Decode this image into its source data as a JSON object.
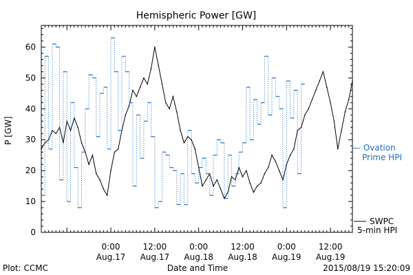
{
  "chart_data": {
    "type": "line",
    "title": "Hemispheric Power [GW]",
    "xlabel": "Date and Time",
    "ylabel": "P [GW]",
    "ylim": [
      0,
      67
    ],
    "yticks": [
      0,
      10,
      20,
      30,
      40,
      50,
      60
    ],
    "xlim": [
      "2015-08-16 05:00",
      "2015-08-19 18:00"
    ],
    "xticks": [
      {
        "t": "2015-08-17 00:00",
        "line1": "0:00",
        "line2": "Aug.17"
      },
      {
        "t": "2015-08-17 12:00",
        "line1": "12:00",
        "line2": "Aug.17"
      },
      {
        "t": "2015-08-18 00:00",
        "line1": "0:00",
        "line2": "Aug.18"
      },
      {
        "t": "2015-08-18 12:00",
        "line1": "12:00",
        "line2": "Aug.18"
      },
      {
        "t": "2015-08-19 00:00",
        "line1": "0:00",
        "line2": "Aug.19"
      },
      {
        "t": "2015-08-19 12:00",
        "line1": "12:00",
        "line2": "Aug.19"
      }
    ],
    "grid": false,
    "series": [
      {
        "name": "SWPC 5-min HPI",
        "label_lines": [
          "SWPC",
          "5-min HPI"
        ],
        "style": "solid",
        "color": "#000000",
        "points": [
          [
            "2015-08-16 05:00",
            27
          ],
          [
            "2015-08-16 06:00",
            29
          ],
          [
            "2015-08-16 07:00",
            30
          ],
          [
            "2015-08-16 08:00",
            33
          ],
          [
            "2015-08-16 09:00",
            32
          ],
          [
            "2015-08-16 10:00",
            34
          ],
          [
            "2015-08-16 11:00",
            29
          ],
          [
            "2015-08-16 12:00",
            36
          ],
          [
            "2015-08-16 13:00",
            33
          ],
          [
            "2015-08-16 14:00",
            37
          ],
          [
            "2015-08-16 15:00",
            34
          ],
          [
            "2015-08-16 16:00",
            29
          ],
          [
            "2015-08-16 17:00",
            26
          ],
          [
            "2015-08-16 18:00",
            22
          ],
          [
            "2015-08-16 19:00",
            25
          ],
          [
            "2015-08-16 20:00",
            19
          ],
          [
            "2015-08-16 21:00",
            17
          ],
          [
            "2015-08-16 22:00",
            14
          ],
          [
            "2015-08-16 23:00",
            12
          ],
          [
            "2015-08-17 00:00",
            20
          ],
          [
            "2015-08-17 01:00",
            26
          ],
          [
            "2015-08-17 02:00",
            27
          ],
          [
            "2015-08-17 03:00",
            33
          ],
          [
            "2015-08-17 04:00",
            38
          ],
          [
            "2015-08-17 05:00",
            41
          ],
          [
            "2015-08-17 06:00",
            46
          ],
          [
            "2015-08-17 07:00",
            44
          ],
          [
            "2015-08-17 08:00",
            47
          ],
          [
            "2015-08-17 09:00",
            50
          ],
          [
            "2015-08-17 10:00",
            48
          ],
          [
            "2015-08-17 11:00",
            53
          ],
          [
            "2015-08-17 12:00",
            60
          ],
          [
            "2015-08-17 13:00",
            54
          ],
          [
            "2015-08-17 14:00",
            48
          ],
          [
            "2015-08-17 15:00",
            42
          ],
          [
            "2015-08-17 16:00",
            40
          ],
          [
            "2015-08-17 17:00",
            44
          ],
          [
            "2015-08-17 18:00",
            39
          ],
          [
            "2015-08-17 19:00",
            33
          ],
          [
            "2015-08-17 20:00",
            29
          ],
          [
            "2015-08-17 21:00",
            31
          ],
          [
            "2015-08-17 22:00",
            30
          ],
          [
            "2015-08-17 23:00",
            27
          ],
          [
            "2015-08-18 00:00",
            21
          ],
          [
            "2015-08-18 01:00",
            15
          ],
          [
            "2015-08-18 02:00",
            17
          ],
          [
            "2015-08-18 03:00",
            19
          ],
          [
            "2015-08-18 04:00",
            15
          ],
          [
            "2015-08-18 05:00",
            17
          ],
          [
            "2015-08-18 06:00",
            14
          ],
          [
            "2015-08-18 07:00",
            11
          ],
          [
            "2015-08-18 08:00",
            13
          ],
          [
            "2015-08-18 09:00",
            18
          ],
          [
            "2015-08-18 10:00",
            17
          ],
          [
            "2015-08-18 11:00",
            21
          ],
          [
            "2015-08-18 12:00",
            18
          ],
          [
            "2015-08-18 13:00",
            20
          ],
          [
            "2015-08-18 14:00",
            16
          ],
          [
            "2015-08-18 15:00",
            13
          ],
          [
            "2015-08-18 16:00",
            15
          ],
          [
            "2015-08-18 17:00",
            16
          ],
          [
            "2015-08-18 18:00",
            19
          ],
          [
            "2015-08-18 19:00",
            21
          ],
          [
            "2015-08-18 20:00",
            25
          ],
          [
            "2015-08-18 21:00",
            23
          ],
          [
            "2015-08-18 22:00",
            20
          ],
          [
            "2015-08-18 23:00",
            17
          ],
          [
            "2015-08-19 00:00",
            22
          ],
          [
            "2015-08-19 01:00",
            25
          ],
          [
            "2015-08-19 02:00",
            27
          ],
          [
            "2015-08-19 03:00",
            33
          ],
          [
            "2015-08-19 04:00",
            34
          ],
          [
            "2015-08-19 05:00",
            38
          ],
          [
            "2015-08-19 06:00",
            40
          ],
          [
            "2015-08-19 07:00",
            43
          ],
          [
            "2015-08-19 08:00",
            46
          ],
          [
            "2015-08-19 09:00",
            49
          ],
          [
            "2015-08-19 10:00",
            52
          ],
          [
            "2015-08-19 11:00",
            47
          ],
          [
            "2015-08-19 12:00",
            42
          ],
          [
            "2015-08-19 13:00",
            36
          ],
          [
            "2015-08-19 14:00",
            27
          ],
          [
            "2015-08-19 15:00",
            33
          ],
          [
            "2015-08-19 16:00",
            39
          ],
          [
            "2015-08-19 17:00",
            43
          ],
          [
            "2015-08-19 18:00",
            49
          ]
        ]
      },
      {
        "name": "Ovation Prime HPI",
        "label_lines": [
          "— Ovation",
          "Prime HPI"
        ],
        "style": "dotted-step",
        "color": "#1f6bbf",
        "points": [
          [
            "2015-08-16 05:00",
            12
          ],
          [
            "2015-08-16 06:00",
            57
          ],
          [
            "2015-08-16 07:00",
            27
          ],
          [
            "2015-08-16 08:00",
            61
          ],
          [
            "2015-08-16 09:00",
            60
          ],
          [
            "2015-08-16 10:00",
            17
          ],
          [
            "2015-08-16 11:00",
            52
          ],
          [
            "2015-08-16 12:00",
            10
          ],
          [
            "2015-08-16 13:00",
            42
          ],
          [
            "2015-08-16 14:00",
            21
          ],
          [
            "2015-08-16 15:00",
            8
          ],
          [
            "2015-08-16 16:00",
            26
          ],
          [
            "2015-08-16 17:00",
            40
          ],
          [
            "2015-08-16 18:00",
            51
          ],
          [
            "2015-08-16 19:00",
            50
          ],
          [
            "2015-08-16 20:00",
            31
          ],
          [
            "2015-08-16 21:00",
            45
          ],
          [
            "2015-08-16 22:00",
            47
          ],
          [
            "2015-08-16 23:00",
            27
          ],
          [
            "2015-08-17 00:00",
            63
          ],
          [
            "2015-08-17 01:00",
            52
          ],
          [
            "2015-08-17 02:00",
            33
          ],
          [
            "2015-08-17 03:00",
            57
          ],
          [
            "2015-08-17 04:00",
            52
          ],
          [
            "2015-08-17 05:00",
            42
          ],
          [
            "2015-08-17 06:00",
            15
          ],
          [
            "2015-08-17 07:00",
            38
          ],
          [
            "2015-08-17 08:00",
            24
          ],
          [
            "2015-08-17 09:00",
            36
          ],
          [
            "2015-08-17 10:00",
            42
          ],
          [
            "2015-08-17 11:00",
            31
          ],
          [
            "2015-08-17 12:00",
            8
          ],
          [
            "2015-08-17 13:00",
            10
          ],
          [
            "2015-08-17 14:00",
            26
          ],
          [
            "2015-08-17 15:00",
            25
          ],
          [
            "2015-08-17 16:00",
            21
          ],
          [
            "2015-08-17 17:00",
            20
          ],
          [
            "2015-08-17 18:00",
            9
          ],
          [
            "2015-08-17 19:00",
            19
          ],
          [
            "2015-08-17 20:00",
            9
          ],
          [
            "2015-08-17 21:00",
            33
          ],
          [
            "2015-08-17 22:00",
            19
          ],
          [
            "2015-08-17 23:00",
            16
          ],
          [
            "2015-08-18 00:00",
            21
          ],
          [
            "2015-08-18 01:00",
            24
          ],
          [
            "2015-08-18 02:00",
            19
          ],
          [
            "2015-08-18 03:00",
            12
          ],
          [
            "2015-08-18 04:00",
            25
          ],
          [
            "2015-08-18 05:00",
            30
          ],
          [
            "2015-08-18 06:00",
            29
          ],
          [
            "2015-08-18 07:00",
            11
          ],
          [
            "2015-08-18 08:00",
            25
          ],
          [
            "2015-08-18 09:00",
            15
          ],
          [
            "2015-08-18 10:00",
            19
          ],
          [
            "2015-08-18 11:00",
            26
          ],
          [
            "2015-08-18 12:00",
            29
          ],
          [
            "2015-08-18 13:00",
            47
          ],
          [
            "2015-08-18 14:00",
            30
          ],
          [
            "2015-08-18 15:00",
            43
          ],
          [
            "2015-08-18 16:00",
            35
          ],
          [
            "2015-08-18 17:00",
            42
          ],
          [
            "2015-08-18 18:00",
            57
          ],
          [
            "2015-08-18 19:00",
            38
          ],
          [
            "2015-08-18 20:00",
            50
          ],
          [
            "2015-08-18 21:00",
            44
          ],
          [
            "2015-08-18 22:00",
            40
          ],
          [
            "2015-08-18 23:00",
            8
          ],
          [
            "2015-08-19 00:00",
            49
          ],
          [
            "2015-08-19 01:00",
            37
          ],
          [
            "2015-08-19 02:00",
            46
          ],
          [
            "2015-08-19 03:00",
            19
          ],
          [
            "2015-08-19 04:00",
            48
          ]
        ]
      }
    ],
    "footer": {
      "left": "Plot: CCMC",
      "right": "2015/08/19 15:20:09"
    }
  }
}
